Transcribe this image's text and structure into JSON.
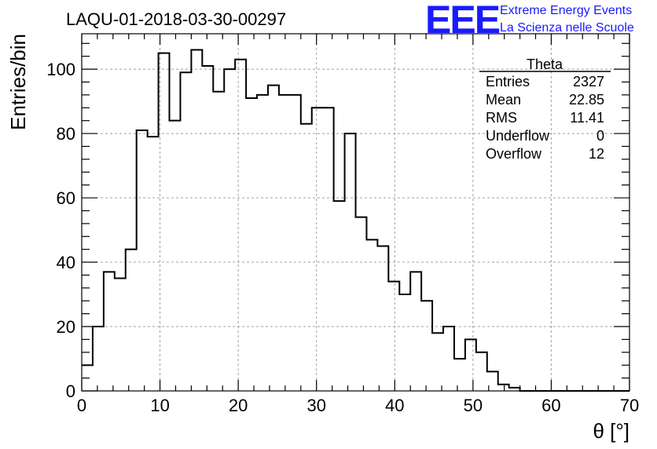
{
  "chart_data": {
    "type": "histogram",
    "title": "LAQU-01-2018-03-30-00297",
    "xlabel": "θ [°]",
    "ylabel": "Entries/bin",
    "xlim": [
      0,
      70
    ],
    "ylim": [
      0,
      111
    ],
    "grid": true,
    "bin_width": 1.4,
    "bin_start": 0,
    "values": [
      8,
      20,
      37,
      35,
      44,
      81,
      79,
      105,
      84,
      99,
      106,
      101,
      93,
      100,
      103,
      91,
      92,
      95,
      92,
      92,
      83,
      88,
      88,
      59,
      80,
      54,
      47,
      45,
      34,
      30,
      37,
      28,
      18,
      20,
      10,
      16,
      12,
      6,
      2,
      1,
      0,
      0,
      0,
      0,
      0,
      0,
      0,
      0,
      0,
      0
    ],
    "x_ticks": [
      "0",
      "10",
      "20",
      "30",
      "40",
      "50",
      "60",
      "70"
    ],
    "y_ticks": [
      "0",
      "20",
      "40",
      "60",
      "80",
      "100"
    ]
  },
  "logo": {
    "letters": "EEE",
    "line1": "Extreme Energy Events",
    "line2": "La Scienza nelle Scuole"
  },
  "stats": {
    "name": "Theta",
    "rows": [
      {
        "label": "Entries",
        "value": "2327"
      },
      {
        "label": "Mean",
        "value": "22.85"
      },
      {
        "label": "RMS",
        "value": "11.41"
      },
      {
        "label": "Underflow",
        "value": "0"
      },
      {
        "label": "Overflow",
        "value": "12"
      }
    ]
  }
}
